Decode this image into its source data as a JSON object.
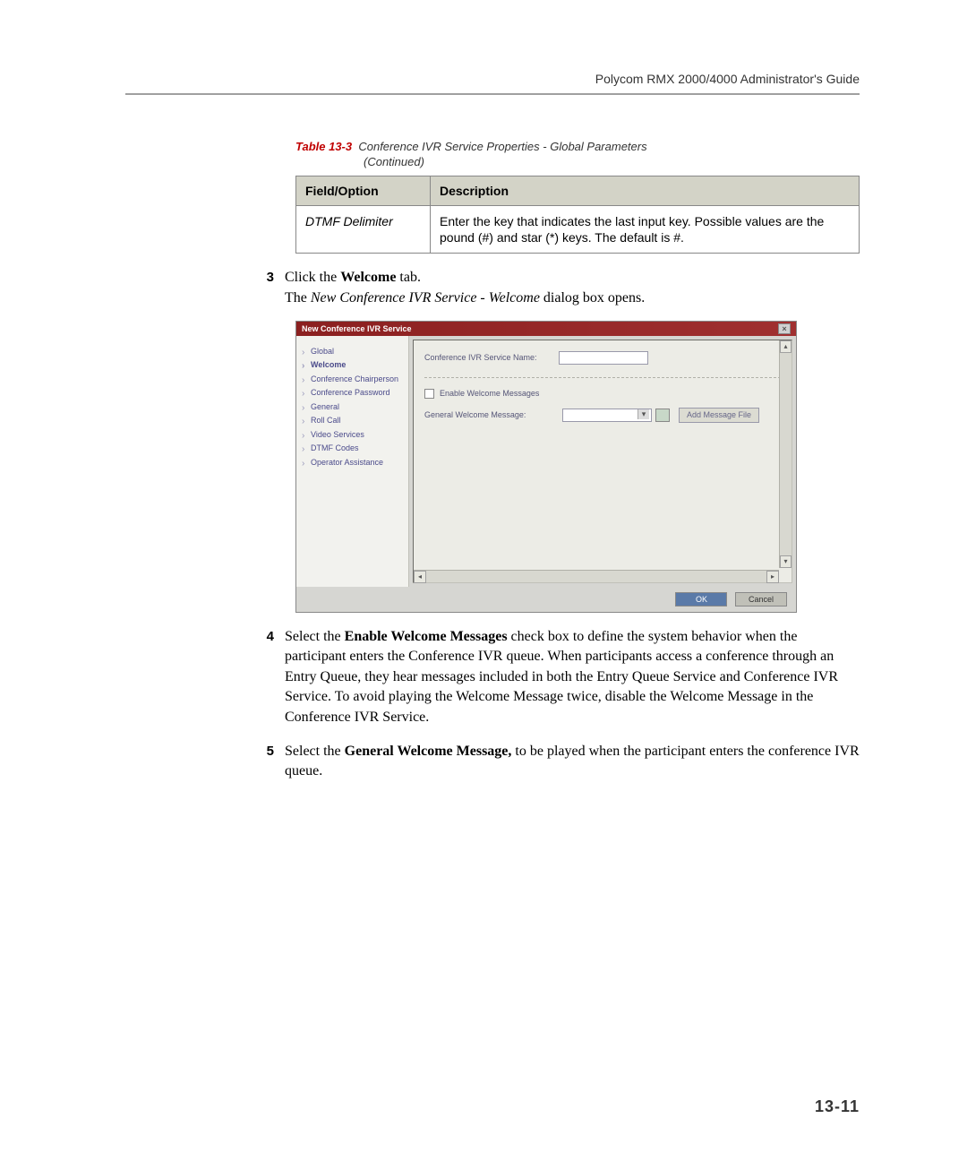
{
  "header": {
    "guide_title": "Polycom RMX 2000/4000 Administrator's Guide"
  },
  "table": {
    "caption_label": "Table 13-3",
    "caption_title": "Conference IVR Service Properties - Global Parameters",
    "caption_cont": "(Continued)",
    "columns": [
      "Field/Option",
      "Description"
    ],
    "rows": [
      {
        "field": "DTMF Delimiter",
        "description": "Enter the key that indicates the last input key. Possible values are the pound (#) and star (*) keys. The default is #."
      }
    ],
    "header_bg": "#d3d3c7",
    "border_color": "#888888"
  },
  "steps": {
    "s3": {
      "num": "3",
      "line1_pre": "Click the ",
      "line1_bold": "Welcome",
      "line1_post": " tab.",
      "line2_pre": "The ",
      "line2_italic": "New Conference IVR Service - Welcome",
      "line2_post": " dialog box opens."
    },
    "s4": {
      "num": "4",
      "pre": "Select the ",
      "bold": "Enable Welcome Messages",
      "post": " check box to define the system behavior when the participant enters the Conference IVR queue. When participants access a conference through an Entry Queue, they hear messages included in both the Entry Queue Service and Conference IVR Service. To avoid playing the Welcome Message twice, disable the Welcome Message in the Conference IVR Service."
    },
    "s5": {
      "num": "5",
      "pre": "Select the ",
      "bold": "General Welcome Message,",
      "post": " to be played when the participant enters the conference IVR queue."
    }
  },
  "dialog": {
    "title": "New Conference IVR Service",
    "sidebar": [
      {
        "label": "Global",
        "selected": false
      },
      {
        "label": "Welcome",
        "selected": true
      },
      {
        "label": "Conference Chairperson",
        "selected": false
      },
      {
        "label": "Conference Password",
        "selected": false
      },
      {
        "label": "General",
        "selected": false
      },
      {
        "label": "Roll Call",
        "selected": false
      },
      {
        "label": "Video Services",
        "selected": false
      },
      {
        "label": "DTMF Codes",
        "selected": false
      },
      {
        "label": "Operator Assistance",
        "selected": false
      }
    ],
    "service_name_label": "Conference IVR Service Name:",
    "enable_welcome_label": "Enable Welcome Messages",
    "general_welcome_label": "General Welcome Message:",
    "add_message_btn": "Add Message File",
    "ok_btn": "OK",
    "cancel_btn": "Cancel",
    "titlebar_bg": "#8b2020",
    "body_bg": "#d6d6d2",
    "sidebar_bg": "#f2f2ee"
  },
  "page_number": "13-11"
}
